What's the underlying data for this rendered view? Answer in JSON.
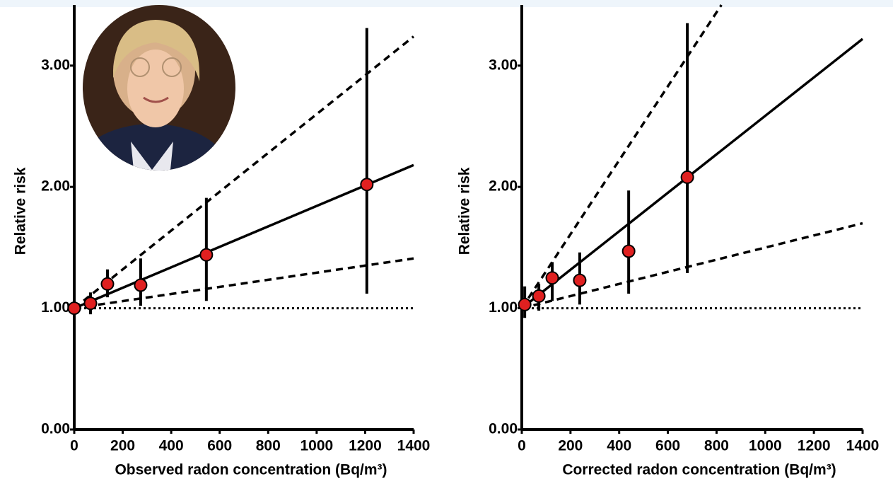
{
  "chart_data": [
    {
      "type": "scatter",
      "xlabel": "Observed radon concentration (Bq/m³)",
      "ylabel": "Relative risk",
      "xlim": [
        0,
        1400
      ],
      "ylim": [
        0,
        3.5
      ],
      "xticks": [
        0,
        200,
        400,
        600,
        800,
        1000,
        1200,
        1400
      ],
      "yticks": [
        {
          "value": 0,
          "label": "0.00"
        },
        {
          "value": 1,
          "label": "1.00"
        },
        {
          "value": 2,
          "label": "2.00"
        },
        {
          "value": 3,
          "label": "3.00"
        }
      ],
      "x": [
        0,
        67,
        137,
        274,
        545,
        1207
      ],
      "values": [
        1.0,
        1.04,
        1.2,
        1.19,
        1.44,
        2.02
      ],
      "ci_low": [
        0.88,
        0.95,
        1.09,
        1.02,
        1.06,
        1.12
      ],
      "ci_high": [
        1.15,
        1.13,
        1.32,
        1.41,
        1.91,
        3.31
      ],
      "color": "#e02020",
      "reference_y": 1,
      "lines": [
        {
          "style": "solid",
          "x": [
            0,
            1400
          ],
          "y": [
            1,
            2.18
          ]
        },
        {
          "style": "dashed",
          "x": [
            0,
            1400
          ],
          "y": [
            1,
            3.24
          ]
        },
        {
          "style": "dashed",
          "x": [
            0,
            1400
          ],
          "y": [
            1,
            1.41
          ]
        }
      ]
    },
    {
      "type": "scatter",
      "xlabel": "Corrected radon concentration (Bq/m³)",
      "ylabel": "Relative risk",
      "xlim": [
        0,
        1400
      ],
      "ylim": [
        0,
        3.5
      ],
      "xticks": [
        0,
        200,
        400,
        600,
        800,
        1000,
        1200,
        1400
      ],
      "yticks": [
        {
          "value": 0,
          "label": "0.00"
        },
        {
          "value": 1,
          "label": "1.00"
        },
        {
          "value": 2,
          "label": "2.00"
        },
        {
          "value": 3,
          "label": "3.00"
        }
      ],
      "x": [
        12,
        70,
        125,
        238,
        439,
        680
      ],
      "values": [
        1.03,
        1.1,
        1.25,
        1.23,
        1.47,
        2.08
      ],
      "ci_low": [
        0.92,
        0.98,
        1.06,
        1.03,
        1.12,
        1.29
      ],
      "ci_high": [
        1.18,
        1.2,
        1.38,
        1.46,
        1.97,
        3.35
      ],
      "color": "#e02020",
      "reference_y": 1,
      "lines": [
        {
          "style": "solid",
          "x": [
            0,
            1400
          ],
          "y": [
            1,
            3.22
          ]
        },
        {
          "style": "dashed",
          "x": [
            0,
            820
          ],
          "y": [
            1,
            3.5
          ]
        },
        {
          "style": "dashed",
          "x": [
            0,
            1400
          ],
          "y": [
            1,
            1.7
          ]
        }
      ]
    }
  ]
}
